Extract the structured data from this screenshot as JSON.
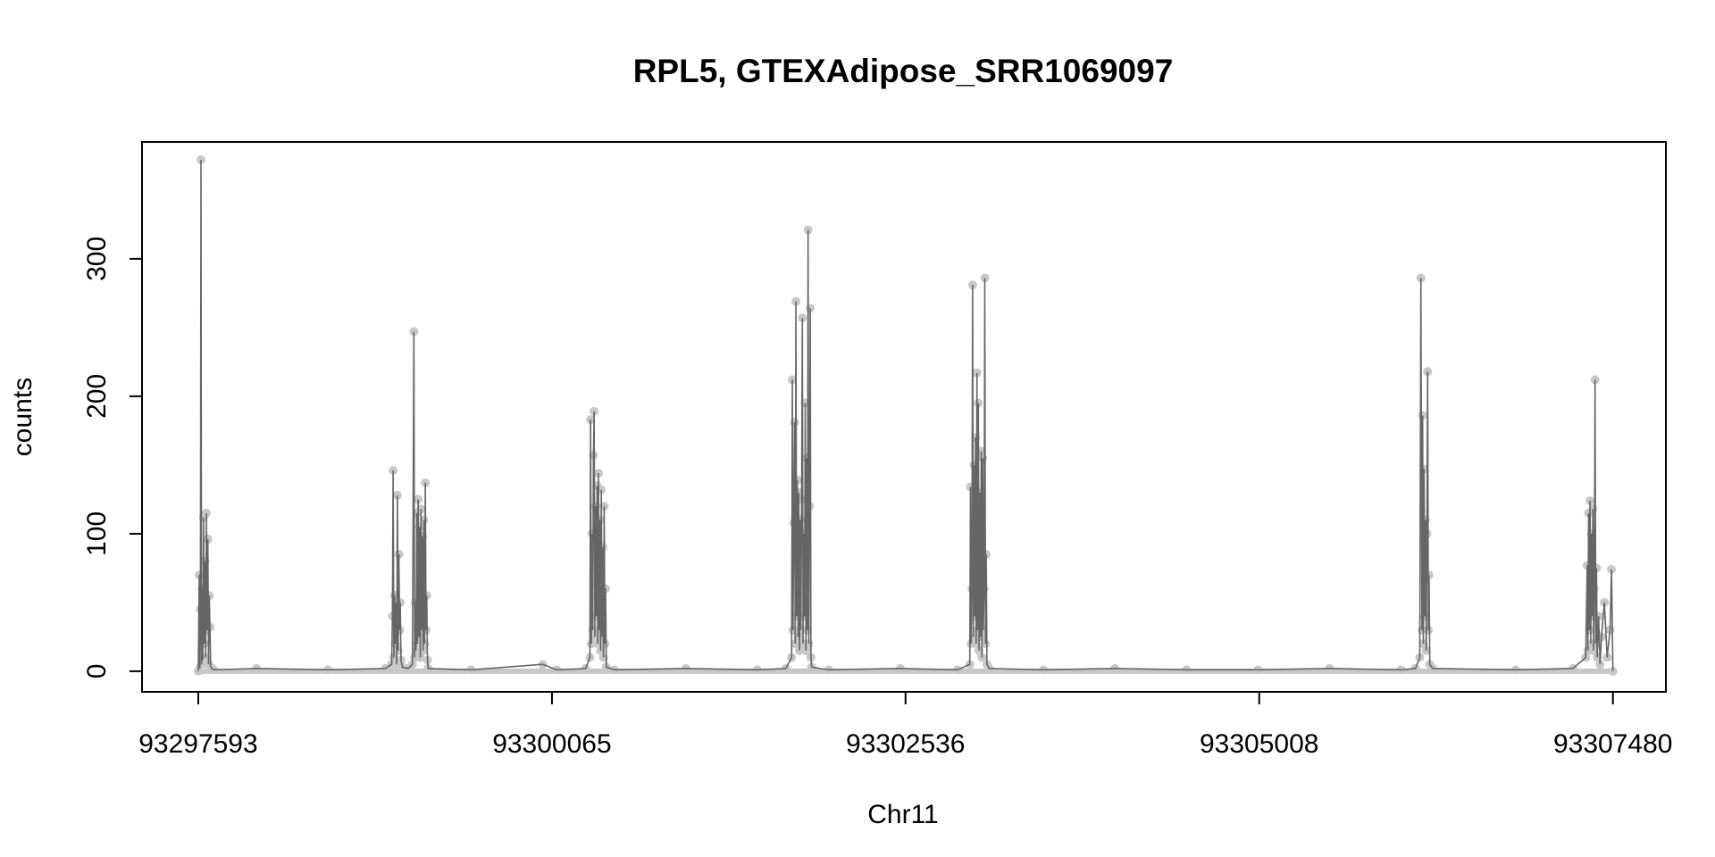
{
  "chart_data": {
    "type": "line",
    "title": "RPL5, GTEXAdipose_SRR1069097",
    "xlabel": "Chr11",
    "ylabel": "counts",
    "xlim": [
      93297200,
      93307850
    ],
    "ylim": [
      -15,
      385
    ],
    "x_ticks": [
      93297593,
      93300065,
      93302536,
      93305008,
      93307480
    ],
    "x_tick_labels": [
      "93297593",
      "93300065",
      "93302536",
      "93305008",
      "93307480"
    ],
    "y_ticks": [
      0,
      100,
      200,
      300
    ],
    "y_tick_labels": [
      "0",
      "100",
      "200",
      "300"
    ],
    "grid": false,
    "legend": false,
    "line_color": "#666666",
    "point_color": "#c8c8c8",
    "series": [
      {
        "values": [
          {
            "x": 93297593,
            "y": 0
          },
          {
            "x": 93297600,
            "y": 70
          },
          {
            "x": 93297604,
            "y": 2
          },
          {
            "x": 93297608,
            "y": 45
          },
          {
            "x": 93297612,
            "y": 372
          },
          {
            "x": 93297616,
            "y": 5
          },
          {
            "x": 93297620,
            "y": 60
          },
          {
            "x": 93297625,
            "y": 8
          },
          {
            "x": 93297630,
            "y": 112
          },
          {
            "x": 93297635,
            "y": 20
          },
          {
            "x": 93297640,
            "y": 80
          },
          {
            "x": 93297645,
            "y": 10
          },
          {
            "x": 93297650,
            "y": 115
          },
          {
            "x": 93297655,
            "y": 30
          },
          {
            "x": 93297660,
            "y": 96
          },
          {
            "x": 93297665,
            "y": 5
          },
          {
            "x": 93297670,
            "y": 55
          },
          {
            "x": 93297675,
            "y": 32
          },
          {
            "x": 93297680,
            "y": 3
          },
          {
            "x": 93297700,
            "y": 1
          },
          {
            "x": 93298000,
            "y": 2
          },
          {
            "x": 93298500,
            "y": 1
          },
          {
            "x": 93298900,
            "y": 2
          },
          {
            "x": 93298945,
            "y": 5
          },
          {
            "x": 93298950,
            "y": 40
          },
          {
            "x": 93298955,
            "y": 146
          },
          {
            "x": 93298960,
            "y": 10
          },
          {
            "x": 93298965,
            "y": 55
          },
          {
            "x": 93298970,
            "y": 20
          },
          {
            "x": 93298975,
            "y": 50
          },
          {
            "x": 93298980,
            "y": 5
          },
          {
            "x": 93298985,
            "y": 128
          },
          {
            "x": 93298990,
            "y": 15
          },
          {
            "x": 93298995,
            "y": 85
          },
          {
            "x": 93299000,
            "y": 30
          },
          {
            "x": 93299005,
            "y": 50
          },
          {
            "x": 93299010,
            "y": 8
          },
          {
            "x": 93299020,
            "y": 3
          },
          {
            "x": 93299060,
            "y": 2
          },
          {
            "x": 93299090,
            "y": 5
          },
          {
            "x": 93299100,
            "y": 247
          },
          {
            "x": 93299105,
            "y": 10
          },
          {
            "x": 93299110,
            "y": 50
          },
          {
            "x": 93299115,
            "y": 15
          },
          {
            "x": 93299120,
            "y": 115
          },
          {
            "x": 93299125,
            "y": 20
          },
          {
            "x": 93299130,
            "y": 125
          },
          {
            "x": 93299135,
            "y": 25
          },
          {
            "x": 93299140,
            "y": 105
          },
          {
            "x": 93299145,
            "y": 10
          },
          {
            "x": 93299150,
            "y": 118
          },
          {
            "x": 93299155,
            "y": 30
          },
          {
            "x": 93299160,
            "y": 98
          },
          {
            "x": 93299165,
            "y": 15
          },
          {
            "x": 93299170,
            "y": 110
          },
          {
            "x": 93299175,
            "y": 20
          },
          {
            "x": 93299180,
            "y": 137
          },
          {
            "x": 93299185,
            "y": 30
          },
          {
            "x": 93299190,
            "y": 55
          },
          {
            "x": 93299195,
            "y": 8
          },
          {
            "x": 93299200,
            "y": 2
          },
          {
            "x": 93299500,
            "y": 1
          },
          {
            "x": 93300000,
            "y": 5
          },
          {
            "x": 93300100,
            "y": 1
          },
          {
            "x": 93300300,
            "y": 2
          },
          {
            "x": 93300330,
            "y": 10
          },
          {
            "x": 93300335,
            "y": 183
          },
          {
            "x": 93300340,
            "y": 20
          },
          {
            "x": 93300345,
            "y": 100
          },
          {
            "x": 93300350,
            "y": 30
          },
          {
            "x": 93300355,
            "y": 157
          },
          {
            "x": 93300360,
            "y": 189
          },
          {
            "x": 93300365,
            "y": 25
          },
          {
            "x": 93300370,
            "y": 120
          },
          {
            "x": 93300375,
            "y": 40
          },
          {
            "x": 93300380,
            "y": 135
          },
          {
            "x": 93300385,
            "y": 20
          },
          {
            "x": 93300390,
            "y": 144
          },
          {
            "x": 93300395,
            "y": 30
          },
          {
            "x": 93300400,
            "y": 110
          },
          {
            "x": 93300405,
            "y": 15
          },
          {
            "x": 93300410,
            "y": 132
          },
          {
            "x": 93300415,
            "y": 25
          },
          {
            "x": 93300420,
            "y": 90
          },
          {
            "x": 93300425,
            "y": 10
          },
          {
            "x": 93300430,
            "y": 120
          },
          {
            "x": 93300435,
            "y": 20
          },
          {
            "x": 93300440,
            "y": 60
          },
          {
            "x": 93300445,
            "y": 3
          },
          {
            "x": 93300500,
            "y": 1
          },
          {
            "x": 93301000,
            "y": 2
          },
          {
            "x": 93301500,
            "y": 1
          },
          {
            "x": 93301700,
            "y": 2
          },
          {
            "x": 93301740,
            "y": 10
          },
          {
            "x": 93301745,
            "y": 212
          },
          {
            "x": 93301750,
            "y": 30
          },
          {
            "x": 93301755,
            "y": 108
          },
          {
            "x": 93301760,
            "y": 181
          },
          {
            "x": 93301765,
            "y": 20
          },
          {
            "x": 93301770,
            "y": 269
          },
          {
            "x": 93301775,
            "y": 40
          },
          {
            "x": 93301780,
            "y": 139
          },
          {
            "x": 93301785,
            "y": 25
          },
          {
            "x": 93301790,
            "y": 130
          },
          {
            "x": 93301795,
            "y": 15
          },
          {
            "x": 93301800,
            "y": 110
          },
          {
            "x": 93301805,
            "y": 30
          },
          {
            "x": 93301810,
            "y": 125
          },
          {
            "x": 93301815,
            "y": 257
          },
          {
            "x": 93301820,
            "y": 20
          },
          {
            "x": 93301825,
            "y": 100
          },
          {
            "x": 93301830,
            "y": 40
          },
          {
            "x": 93301835,
            "y": 195
          },
          {
            "x": 93301840,
            "y": 15
          },
          {
            "x": 93301845,
            "y": 155
          },
          {
            "x": 93301850,
            "y": 30
          },
          {
            "x": 93301855,
            "y": 321
          },
          {
            "x": 93301860,
            "y": 20
          },
          {
            "x": 93301865,
            "y": 120
          },
          {
            "x": 93301870,
            "y": 264
          },
          {
            "x": 93301875,
            "y": 10
          },
          {
            "x": 93301880,
            "y": 3
          },
          {
            "x": 93302000,
            "y": 1
          },
          {
            "x": 93302500,
            "y": 2
          },
          {
            "x": 93302900,
            "y": 1
          },
          {
            "x": 93302985,
            "y": 5
          },
          {
            "x": 93302990,
            "y": 134
          },
          {
            "x": 93302995,
            "y": 20
          },
          {
            "x": 93303000,
            "y": 60
          },
          {
            "x": 93303005,
            "y": 281
          },
          {
            "x": 93303010,
            "y": 25
          },
          {
            "x": 93303015,
            "y": 150
          },
          {
            "x": 93303020,
            "y": 40
          },
          {
            "x": 93303025,
            "y": 170
          },
          {
            "x": 93303030,
            "y": 20
          },
          {
            "x": 93303035,
            "y": 217
          },
          {
            "x": 93303040,
            "y": 30
          },
          {
            "x": 93303045,
            "y": 195
          },
          {
            "x": 93303050,
            "y": 15
          },
          {
            "x": 93303055,
            "y": 130
          },
          {
            "x": 93303060,
            "y": 25
          },
          {
            "x": 93303065,
            "y": 160
          },
          {
            "x": 93303070,
            "y": 10
          },
          {
            "x": 93303075,
            "y": 155
          },
          {
            "x": 93303080,
            "y": 30
          },
          {
            "x": 93303085,
            "y": 60
          },
          {
            "x": 93303090,
            "y": 286
          },
          {
            "x": 93303095,
            "y": 20
          },
          {
            "x": 93303100,
            "y": 85
          },
          {
            "x": 93303105,
            "y": 5
          },
          {
            "x": 93303120,
            "y": 2
          },
          {
            "x": 93303500,
            "y": 1
          },
          {
            "x": 93304000,
            "y": 2
          },
          {
            "x": 93304500,
            "y": 1
          },
          {
            "x": 93305000,
            "y": 1
          },
          {
            "x": 93305500,
            "y": 2
          },
          {
            "x": 93306000,
            "y": 1
          },
          {
            "x": 93306100,
            "y": 2
          },
          {
            "x": 93306130,
            "y": 10
          },
          {
            "x": 93306138,
            "y": 286
          },
          {
            "x": 93306145,
            "y": 30
          },
          {
            "x": 93306150,
            "y": 186
          },
          {
            "x": 93306155,
            "y": 20
          },
          {
            "x": 93306160,
            "y": 147
          },
          {
            "x": 93306165,
            "y": 40
          },
          {
            "x": 93306170,
            "y": 110
          },
          {
            "x": 93306175,
            "y": 15
          },
          {
            "x": 93306180,
            "y": 100
          },
          {
            "x": 93306185,
            "y": 218
          },
          {
            "x": 93306190,
            "y": 30
          },
          {
            "x": 93306195,
            "y": 70
          },
          {
            "x": 93306200,
            "y": 5
          },
          {
            "x": 93306220,
            "y": 2
          },
          {
            "x": 93306800,
            "y": 1
          },
          {
            "x": 93307200,
            "y": 2
          },
          {
            "x": 93307290,
            "y": 10
          },
          {
            "x": 93307300,
            "y": 77
          },
          {
            "x": 93307305,
            "y": 15
          },
          {
            "x": 93307310,
            "y": 115
          },
          {
            "x": 93307315,
            "y": 30
          },
          {
            "x": 93307320,
            "y": 124
          },
          {
            "x": 93307325,
            "y": 20
          },
          {
            "x": 93307330,
            "y": 100
          },
          {
            "x": 93307335,
            "y": 40
          },
          {
            "x": 93307340,
            "y": 118
          },
          {
            "x": 93307345,
            "y": 15
          },
          {
            "x": 93307350,
            "y": 60
          },
          {
            "x": 93307355,
            "y": 212
          },
          {
            "x": 93307360,
            "y": 20
          },
          {
            "x": 93307365,
            "y": 75
          },
          {
            "x": 93307370,
            "y": 10
          },
          {
            "x": 93307380,
            "y": 40
          },
          {
            "x": 93307390,
            "y": 5
          },
          {
            "x": 93307400,
            "y": 25
          },
          {
            "x": 93307420,
            "y": 50
          },
          {
            "x": 93307440,
            "y": 10
          },
          {
            "x": 93307460,
            "y": 30
          },
          {
            "x": 93307470,
            "y": 74
          },
          {
            "x": 93307480,
            "y": 0
          }
        ]
      }
    ]
  }
}
